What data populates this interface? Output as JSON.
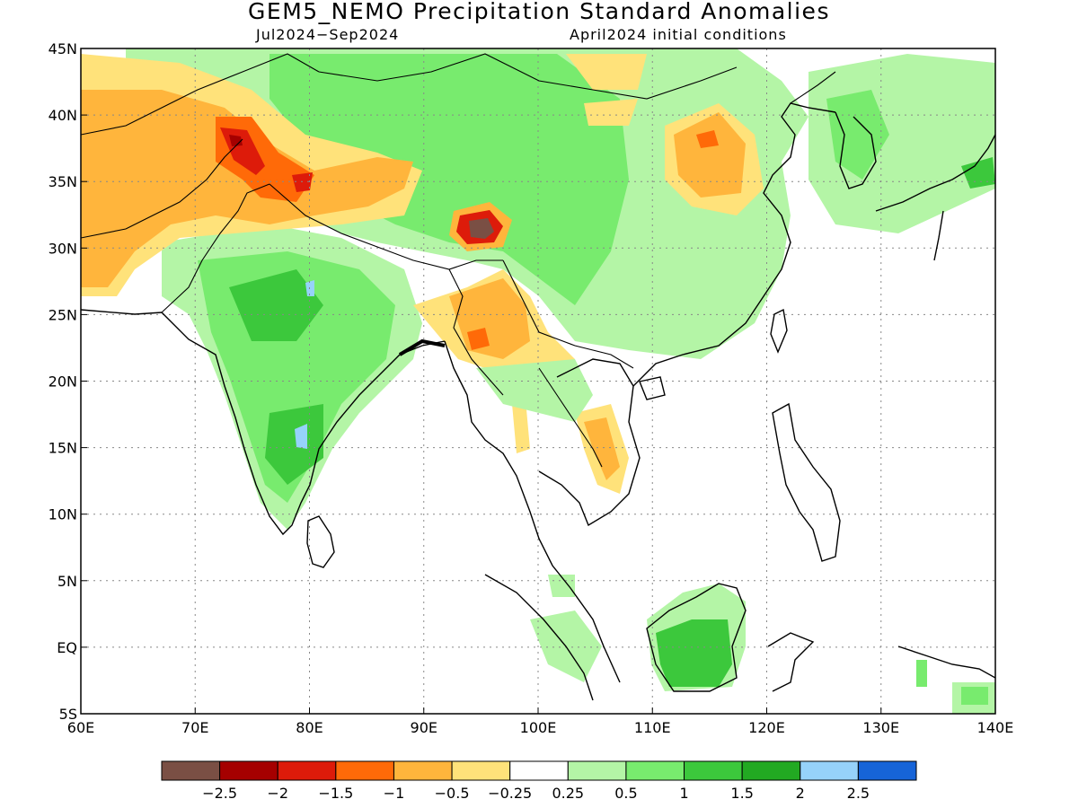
{
  "title": "GEM5_NEMO Precipitation Standard Anomalies",
  "subtitle_period": "Jul2024−Sep2024",
  "subtitle_init": "April2024 initial conditions",
  "map": {
    "lon_range": [
      60,
      140
    ],
    "lat_range": [
      -5,
      45
    ],
    "lon_ticks": [
      {
        "value": 60,
        "label": "60E"
      },
      {
        "value": 70,
        "label": "70E"
      },
      {
        "value": 80,
        "label": "80E"
      },
      {
        "value": 90,
        "label": "90E"
      },
      {
        "value": 100,
        "label": "100E"
      },
      {
        "value": 110,
        "label": "110E"
      },
      {
        "value": 120,
        "label": "120E"
      },
      {
        "value": 130,
        "label": "130E"
      },
      {
        "value": 140,
        "label": "140E"
      }
    ],
    "lat_ticks": [
      {
        "value": 45,
        "label": "45N"
      },
      {
        "value": 40,
        "label": "40N"
      },
      {
        "value": 35,
        "label": "35N"
      },
      {
        "value": 30,
        "label": "30N"
      },
      {
        "value": 25,
        "label": "25N"
      },
      {
        "value": 20,
        "label": "20N"
      },
      {
        "value": 15,
        "label": "15N"
      },
      {
        "value": 10,
        "label": "10N"
      },
      {
        "value": 5,
        "label": "5N"
      },
      {
        "value": 0,
        "label": "EQ"
      },
      {
        "value": -5,
        "label": "5S"
      }
    ],
    "grid": "dotted"
  },
  "colorbar": {
    "colors": [
      "#7a4f44",
      "#a50000",
      "#dd1b0a",
      "#ff6a08",
      "#ffb53c",
      "#ffe27a",
      "#ffffff",
      "#b4f5a6",
      "#78eb6e",
      "#3cc83c",
      "#22a922",
      "#96d2fa",
      "#1664d8"
    ],
    "labels": [
      "−2.5",
      "−2",
      "−1.5",
      "−1",
      "−0.5",
      "−0.25",
      "0.25",
      "0.5",
      "1",
      "1.5",
      "2",
      "2.5"
    ]
  },
  "anomaly_regions": [
    {
      "name": "north-india-pakistan-dry",
      "level": -0.5,
      "color": "#ffb53c"
    },
    {
      "name": "himalaya-dry-core",
      "level": -1.5,
      "color": "#dd1b0a"
    },
    {
      "name": "tibet-dry-core",
      "level": -2.5,
      "color": "#7a4f44"
    },
    {
      "name": "north-china-dry",
      "level": -0.5,
      "color": "#ffb53c"
    },
    {
      "name": "myanmar-dry",
      "level": -1,
      "color": "#ff6a08"
    },
    {
      "name": "india-wet",
      "level": 1,
      "color": "#78eb6e"
    },
    {
      "name": "southwest-china-wet",
      "level": 1,
      "color": "#78eb6e"
    },
    {
      "name": "borneo-wet",
      "level": 1.5,
      "color": "#3cc83c"
    }
  ]
}
